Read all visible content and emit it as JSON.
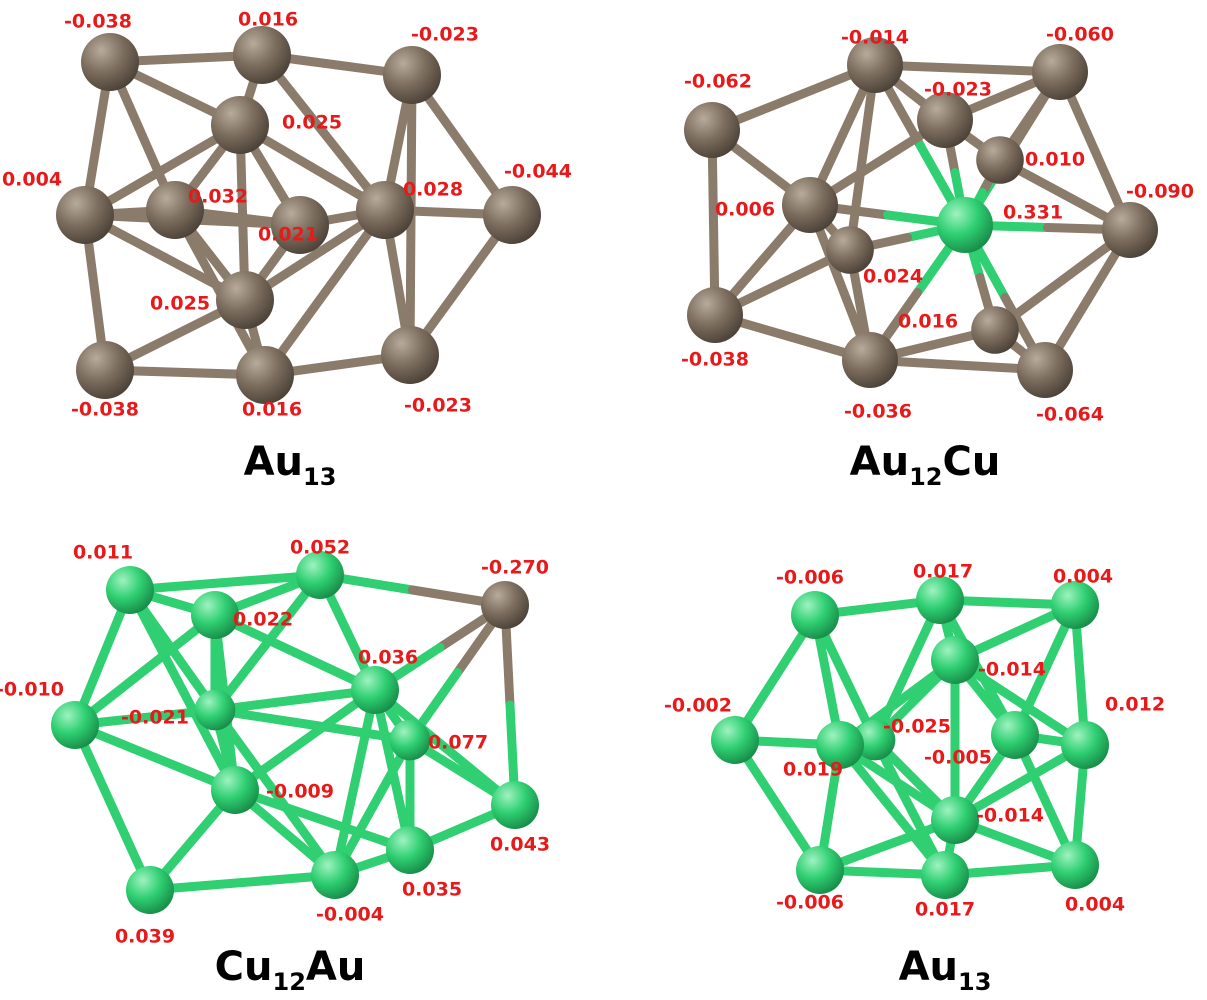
{
  "panels": [
    {
      "title": [
        {
          "text": "Au"
        },
        {
          "sub": "13"
        }
      ],
      "labels": [
        "-0.038",
        "0.016",
        "-0.023",
        "0.025",
        "0.004",
        "0.032",
        "0.028",
        "-0.044",
        "0.025",
        "-0.038",
        "0.016",
        "-0.023",
        "0.021"
      ]
    },
    {
      "title": [
        {
          "text": "Au"
        },
        {
          "sub": "12"
        },
        {
          "text": "Cu"
        }
      ],
      "labels": [
        "-0.014",
        "-0.060",
        "-0.062",
        "-0.023",
        "0.010",
        "0.006",
        "0.331",
        "-0.090",
        "-0.038",
        "-0.036",
        "0.016",
        "-0.064",
        "0.024"
      ]
    },
    {
      "title": [
        {
          "text": "Cu"
        },
        {
          "sub": "12"
        },
        {
          "text": "Au"
        }
      ],
      "labels": [
        "0.011",
        "0.052",
        "-0.270",
        "0.022",
        "0.036",
        "-0.010",
        "-0.021",
        "0.077",
        "-0.009",
        "0.043",
        "0.035",
        "-0.004",
        "0.039"
      ]
    },
    {
      "title": [
        {
          "text": "Au"
        },
        {
          "sub": "13"
        }
      ],
      "labels": [
        "-0.006",
        "0.017",
        "0.004",
        "-0.014",
        "-0.002",
        "0.019",
        "-0.025",
        "-0.005",
        "0.012",
        "-0.014",
        "-0.006",
        "0.017",
        "0.004"
      ]
    }
  ]
}
